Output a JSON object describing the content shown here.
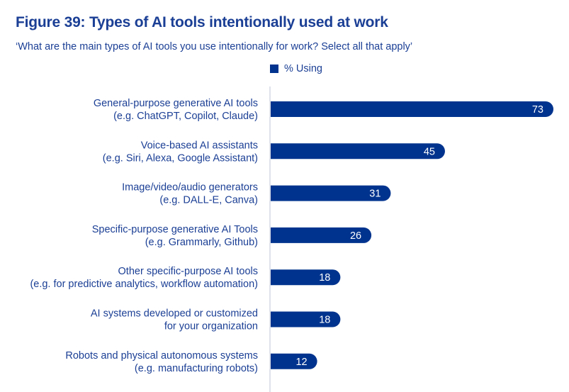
{
  "title": "Figure 39: Types of AI tools intentionally used at work",
  "subtitle": "‘What are the main types of AI tools you use intentionally for work? Select all that apply’",
  "colors": {
    "bar": "#00338d",
    "text": "#1b3f95",
    "axis": "#bfc6d4",
    "label": "#ffffff"
  },
  "chart_data": {
    "type": "bar",
    "orientation": "horizontal",
    "categories": [
      [
        "General-purpose generative AI tools",
        "(e.g. ChatGPT, Copilot, Claude)"
      ],
      [
        "Voice-based AI assistants",
        "(e.g. Siri, Alexa, Google Assistant)"
      ],
      [
        "Image/video/audio generators",
        "(e.g. DALL-E, Canva)"
      ],
      [
        "Specific-purpose generative AI Tools",
        "(e.g. Grammarly, Github)"
      ],
      [
        "Other specific-purpose AI tools",
        "(e.g. for predictive analytics, workflow automation)"
      ],
      [
        "AI systems developed or customized",
        "for your organization"
      ],
      [
        "Robots and physical autonomous systems",
        "(e.g. manufacturing robots)"
      ]
    ],
    "series": [
      {
        "name": "% Using",
        "values": [
          73,
          45,
          31,
          26,
          18,
          18,
          12
        ]
      }
    ],
    "xlim": [
      0,
      73
    ],
    "legend_position": "top",
    "data_labels": true,
    "grid": false
  }
}
